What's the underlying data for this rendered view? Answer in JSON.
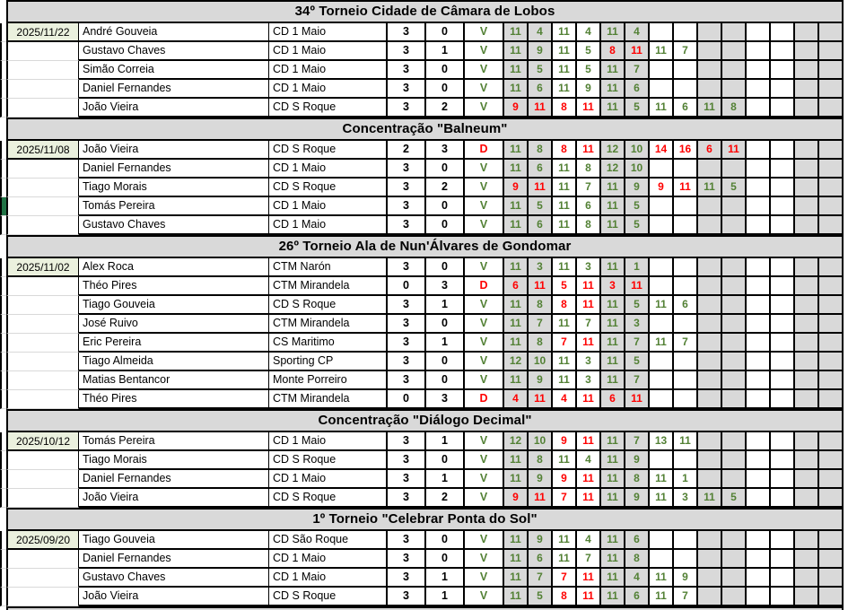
{
  "colors": {
    "header_bg": "#D9D9D9",
    "set_gray": "#D9D9D9",
    "date_bg": "#EBF1DE",
    "green_text": "#538135",
    "red_text": "#FF0000",
    "marker_green": "#217346"
  },
  "result_labels": {
    "win": "V",
    "loss": "D"
  },
  "left_margin_marker": {
    "section_index": 1,
    "row_index": 3
  },
  "sections": [
    {
      "title": "34º Torneio Cidade de Câmara de Lobos",
      "date": "2025/11/22",
      "rows": [
        {
          "player": "André Gouveia",
          "club": "CD 1 Maio",
          "won": 3,
          "lost": 0,
          "result": "V",
          "sets": [
            [
              11,
              4
            ],
            [
              11,
              4
            ],
            [
              11,
              4
            ]
          ]
        },
        {
          "player": "Gustavo Chaves",
          "club": "CD 1 Maio",
          "won": 3,
          "lost": 1,
          "result": "V",
          "sets": [
            [
              11,
              9
            ],
            [
              11,
              5
            ],
            [
              8,
              11
            ],
            [
              11,
              7
            ]
          ]
        },
        {
          "player": "Simão Correia",
          "club": "CD 1 Maio",
          "won": 3,
          "lost": 0,
          "result": "V",
          "sets": [
            [
              11,
              5
            ],
            [
              11,
              5
            ],
            [
              11,
              7
            ]
          ]
        },
        {
          "player": "Daniel Fernandes",
          "club": "CD 1 Maio",
          "won": 3,
          "lost": 0,
          "result": "V",
          "sets": [
            [
              11,
              6
            ],
            [
              11,
              9
            ],
            [
              11,
              6
            ]
          ]
        },
        {
          "player": "João Vieira",
          "club": "CD S Roque",
          "won": 3,
          "lost": 2,
          "result": "V",
          "sets": [
            [
              9,
              11
            ],
            [
              8,
              11
            ],
            [
              11,
              5
            ],
            [
              11,
              6
            ],
            [
              11,
              8
            ]
          ]
        }
      ]
    },
    {
      "title": "Concentração \"Balneum\"",
      "date": "2025/11/08",
      "rows": [
        {
          "player": "João Vieira",
          "club": "CD S Roque",
          "won": 2,
          "lost": 3,
          "result": "D",
          "sets": [
            [
              11,
              8
            ],
            [
              8,
              11
            ],
            [
              12,
              10
            ],
            [
              14,
              16
            ],
            [
              6,
              11
            ]
          ]
        },
        {
          "player": "Daniel Fernandes",
          "club": "CD 1 Maio",
          "won": 3,
          "lost": 0,
          "result": "V",
          "sets": [
            [
              11,
              6
            ],
            [
              11,
              8
            ],
            [
              12,
              10
            ]
          ]
        },
        {
          "player": "Tiago Morais",
          "club": "CD S Roque",
          "won": 3,
          "lost": 2,
          "result": "V",
          "sets": [
            [
              9,
              11
            ],
            [
              11,
              7
            ],
            [
              11,
              9
            ],
            [
              9,
              11
            ],
            [
              11,
              5
            ]
          ]
        },
        {
          "player": "Tomás Pereira",
          "club": "CD 1 Maio",
          "won": 3,
          "lost": 0,
          "result": "V",
          "sets": [
            [
              11,
              5
            ],
            [
              11,
              6
            ],
            [
              11,
              5
            ]
          ]
        },
        {
          "player": "Gustavo Chaves",
          "club": "CD 1 Maio",
          "won": 3,
          "lost": 0,
          "result": "V",
          "sets": [
            [
              11,
              6
            ],
            [
              11,
              8
            ],
            [
              11,
              5
            ]
          ]
        }
      ]
    },
    {
      "title": "26º Torneio Ala de Nun'Álvares de Gondomar",
      "date": "2025/11/02",
      "rows": [
        {
          "player": "Alex Roca",
          "club": "CTM Narón",
          "won": 3,
          "lost": 0,
          "result": "V",
          "sets": [
            [
              11,
              3
            ],
            [
              11,
              3
            ],
            [
              11,
              1
            ]
          ]
        },
        {
          "player": "Théo Pires",
          "club": "CTM Mirandela",
          "won": 0,
          "lost": 3,
          "result": "D",
          "sets": [
            [
              6,
              11
            ],
            [
              5,
              11
            ],
            [
              3,
              11
            ]
          ]
        },
        {
          "player": "Tiago Gouveia",
          "club": "CD S Roque",
          "won": 3,
          "lost": 1,
          "result": "V",
          "sets": [
            [
              11,
              8
            ],
            [
              8,
              11
            ],
            [
              11,
              5
            ],
            [
              11,
              6
            ]
          ]
        },
        {
          "player": "José Ruivo",
          "club": "CTM Mirandela",
          "won": 3,
          "lost": 0,
          "result": "V",
          "sets": [
            [
              11,
              7
            ],
            [
              11,
              7
            ],
            [
              11,
              3
            ]
          ]
        },
        {
          "player": "Eric Pereira",
          "club": "CS Maritimo",
          "won": 3,
          "lost": 1,
          "result": "V",
          "sets": [
            [
              11,
              8
            ],
            [
              7,
              11
            ],
            [
              11,
              7
            ],
            [
              11,
              7
            ]
          ]
        },
        {
          "player": "Tiago Almeida",
          "club": "Sporting CP",
          "won": 3,
          "lost": 0,
          "result": "V",
          "sets": [
            [
              12,
              10
            ],
            [
              11,
              3
            ],
            [
              11,
              5
            ]
          ]
        },
        {
          "player": "Matias Bentancor",
          "club": "Monte Porreiro",
          "won": 3,
          "lost": 0,
          "result": "V",
          "sets": [
            [
              11,
              9
            ],
            [
              11,
              3
            ],
            [
              11,
              7
            ]
          ]
        },
        {
          "player": "Théo Pires",
          "club": "CTM Mirandela",
          "won": 0,
          "lost": 3,
          "result": "D",
          "sets": [
            [
              4,
              11
            ],
            [
              4,
              11
            ],
            [
              6,
              11
            ]
          ]
        }
      ]
    },
    {
      "title": "Concentração \"Diálogo Decimal\"",
      "date": "2025/10/12",
      "rows": [
        {
          "player": "Tomás Pereira",
          "club": "CD 1 Maio",
          "won": 3,
          "lost": 1,
          "result": "V",
          "sets": [
            [
              12,
              10
            ],
            [
              9,
              11
            ],
            [
              11,
              7
            ],
            [
              13,
              11
            ]
          ]
        },
        {
          "player": "Tiago Morais",
          "club": "CD S Roque",
          "won": 3,
          "lost": 0,
          "result": "V",
          "sets": [
            [
              11,
              8
            ],
            [
              11,
              4
            ],
            [
              11,
              9
            ]
          ]
        },
        {
          "player": "Daniel Fernandes",
          "club": "CD 1 Maio",
          "won": 3,
          "lost": 1,
          "result": "V",
          "sets": [
            [
              11,
              9
            ],
            [
              9,
              11
            ],
            [
              11,
              8
            ],
            [
              11,
              1
            ]
          ]
        },
        {
          "player": "João Vieira",
          "club": "CD S Roque",
          "won": 3,
          "lost": 2,
          "result": "V",
          "sets": [
            [
              9,
              11
            ],
            [
              7,
              11
            ],
            [
              11,
              9
            ],
            [
              11,
              3
            ],
            [
              11,
              5
            ]
          ]
        }
      ]
    },
    {
      "title": "1º Torneio \"Celebrar Ponta do Sol\"",
      "date": "2025/09/20",
      "rows": [
        {
          "player": "Tiago Gouveia",
          "club": "CD São Roque",
          "won": 3,
          "lost": 0,
          "result": "V",
          "sets": [
            [
              11,
              9
            ],
            [
              11,
              4
            ],
            [
              11,
              6
            ]
          ]
        },
        {
          "player": "Daniel Fernandes",
          "club": "CD 1 Maio",
          "won": 3,
          "lost": 0,
          "result": "V",
          "sets": [
            [
              11,
              6
            ],
            [
              11,
              7
            ],
            [
              11,
              8
            ]
          ]
        },
        {
          "player": "Gustavo Chaves",
          "club": "CD 1 Maio",
          "won": 3,
          "lost": 1,
          "result": "V",
          "sets": [
            [
              11,
              7
            ],
            [
              7,
              11
            ],
            [
              11,
              4
            ],
            [
              11,
              9
            ]
          ]
        },
        {
          "player": "João Vieira",
          "club": "CD S Roque",
          "won": 3,
          "lost": 1,
          "result": "V",
          "sets": [
            [
              11,
              5
            ],
            [
              8,
              11
            ],
            [
              11,
              6
            ],
            [
              11,
              7
            ]
          ]
        }
      ]
    }
  ]
}
